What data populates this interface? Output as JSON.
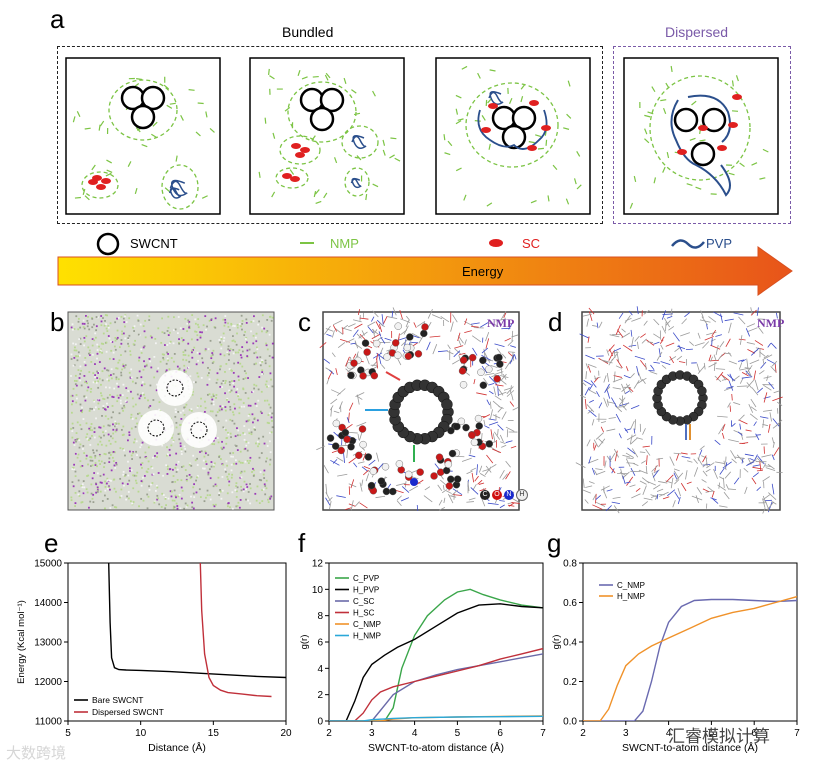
{
  "panel_a": {
    "letter": "a",
    "bundled_title": "Bundled",
    "dispersed_title": "Dispersed",
    "legend": {
      "swcnt": "SWCNT",
      "nmp": "NMP",
      "sc": "SC",
      "pvp": "PVP"
    },
    "energy_label": "Energy",
    "colors": {
      "nmp": "#7cc444",
      "sc": "#e02020",
      "pvp": "#2b4f8c",
      "dispersed": "#7a5aa8",
      "arrow_start": "#ffe100",
      "arrow_end": "#e8541a"
    }
  },
  "panel_b": {
    "letter": "b"
  },
  "panel_c": {
    "letter": "c",
    "tag": "NMP",
    "atom_legend": [
      "C",
      "O",
      "N",
      "H"
    ]
  },
  "panel_d": {
    "letter": "d",
    "tag": "NMP"
  },
  "panel_e": {
    "letter": "e",
    "chart_data": {
      "type": "line",
      "xlabel": "Distance (Å)",
      "ylabel": "Energy (Kcal mol⁻¹)",
      "xlim": [
        5,
        20
      ],
      "ylim": [
        11000,
        15000
      ],
      "xticks": [
        "5",
        "10",
        "15",
        "20"
      ],
      "yticks": [
        "11000",
        "12000",
        "13000",
        "14000",
        "15000"
      ],
      "series": [
        {
          "name": "Bare SWCNT",
          "color": "#000000",
          "x": [
            7.8,
            7.9,
            8.0,
            8.2,
            8.5,
            9,
            10,
            12,
            14,
            16,
            18,
            20
          ],
          "y": [
            15000,
            13500,
            12600,
            12350,
            12300,
            12290,
            12280,
            12250,
            12210,
            12170,
            12130,
            12100
          ]
        },
        {
          "name": "Dispersed SWCNT",
          "color": "#c0303a",
          "x": [
            14.1,
            14.2,
            14.4,
            14.7,
            15,
            15.5,
            16,
            17,
            18,
            19
          ],
          "y": [
            15000,
            13800,
            12700,
            12100,
            11900,
            11780,
            11720,
            11680,
            11640,
            11620
          ]
        }
      ]
    }
  },
  "panel_f": {
    "letter": "f",
    "chart_data": {
      "type": "line",
      "xlabel": "SWCNT-to-atom distance (Å)",
      "ylabel": "g(r)",
      "xlim": [
        2,
        7
      ],
      "ylim": [
        0,
        12
      ],
      "xticks": [
        "2",
        "3",
        "4",
        "5",
        "6",
        "7"
      ],
      "yticks": [
        "0",
        "2",
        "4",
        "6",
        "8",
        "10",
        "12"
      ],
      "series": [
        {
          "name": "C_PVP",
          "color": "#3aa64a",
          "x": [
            2,
            3.3,
            3.5,
            3.7,
            4,
            4.3,
            4.7,
            5,
            5.3,
            5.6,
            6,
            6.5,
            7
          ],
          "y": [
            0,
            0,
            1,
            4,
            6.5,
            8,
            9.2,
            9.8,
            10,
            9.6,
            9.2,
            8.8,
            8.6
          ]
        },
        {
          "name": "H_PVP",
          "color": "#000000",
          "x": [
            2,
            2.4,
            2.6,
            2.8,
            3.0,
            3.3,
            3.6,
            4,
            4.5,
            5,
            5.5,
            6,
            6.5,
            7
          ],
          "y": [
            0,
            0,
            1.5,
            3.3,
            4.3,
            5,
            5.6,
            6.2,
            7.2,
            8.2,
            8.8,
            8.9,
            8.7,
            8.6
          ]
        },
        {
          "name": "C_SC",
          "color": "#6a6aa8",
          "x": [
            2,
            3.0,
            3.2,
            3.5,
            4,
            4.5,
            5,
            5.5,
            6,
            6.5,
            7
          ],
          "y": [
            0,
            0,
            0.8,
            2,
            3,
            3.5,
            3.9,
            4.2,
            4.5,
            4.8,
            5.1
          ]
        },
        {
          "name": "H_SC",
          "color": "#c0303a",
          "x": [
            2,
            2.6,
            2.8,
            3.0,
            3.2,
            3.5,
            4,
            4.5,
            5,
            5.5,
            6,
            6.5,
            7
          ],
          "y": [
            0,
            0,
            0.6,
            1.6,
            2.2,
            2.6,
            3,
            3.4,
            3.8,
            4.2,
            4.7,
            5.1,
            5.5
          ]
        },
        {
          "name": "C_NMP",
          "color": "#f0922a",
          "x": [
            2,
            3.2,
            3.5,
            4,
            5,
            6,
            7
          ],
          "y": [
            0,
            0,
            0.15,
            0.25,
            0.3,
            0.35,
            0.38
          ]
        },
        {
          "name": "H_NMP",
          "color": "#2aa8d8",
          "x": [
            2,
            2.8,
            3.0,
            3.5,
            4,
            5,
            6,
            7
          ],
          "y": [
            0,
            0,
            0.1,
            0.2,
            0.25,
            0.3,
            0.33,
            0.36
          ]
        }
      ]
    }
  },
  "panel_g": {
    "letter": "g",
    "chart_data": {
      "type": "line",
      "xlabel": "SWCNT-to-atom distance (Å)",
      "ylabel": "g(r)",
      "xlim": [
        2,
        7
      ],
      "ylim": [
        0,
        0.8
      ],
      "xticks": [
        "2",
        "3",
        "4",
        "5",
        "6",
        "7"
      ],
      "yticks": [
        "0.0",
        "0.2",
        "0.4",
        "0.6",
        "0.8"
      ],
      "series": [
        {
          "name": "C_NMP",
          "color": "#6a6ab0",
          "x": [
            2,
            3.2,
            3.4,
            3.6,
            3.8,
            4.0,
            4.3,
            4.6,
            5,
            5.5,
            6,
            6.5,
            7
          ],
          "y": [
            0,
            0,
            0.05,
            0.2,
            0.38,
            0.5,
            0.58,
            0.61,
            0.615,
            0.615,
            0.61,
            0.605,
            0.61
          ]
        },
        {
          "name": "H_NMP",
          "color": "#f0922a",
          "x": [
            2,
            2.4,
            2.6,
            2.8,
            3.0,
            3.3,
            3.6,
            4,
            4.5,
            5,
            5.5,
            6,
            6.5,
            7
          ],
          "y": [
            0,
            0,
            0.06,
            0.18,
            0.28,
            0.34,
            0.38,
            0.42,
            0.47,
            0.52,
            0.55,
            0.57,
            0.6,
            0.63
          ]
        }
      ]
    }
  },
  "watermark": {
    "left": "大数跨境",
    "right": "汇睿模拟计算"
  }
}
